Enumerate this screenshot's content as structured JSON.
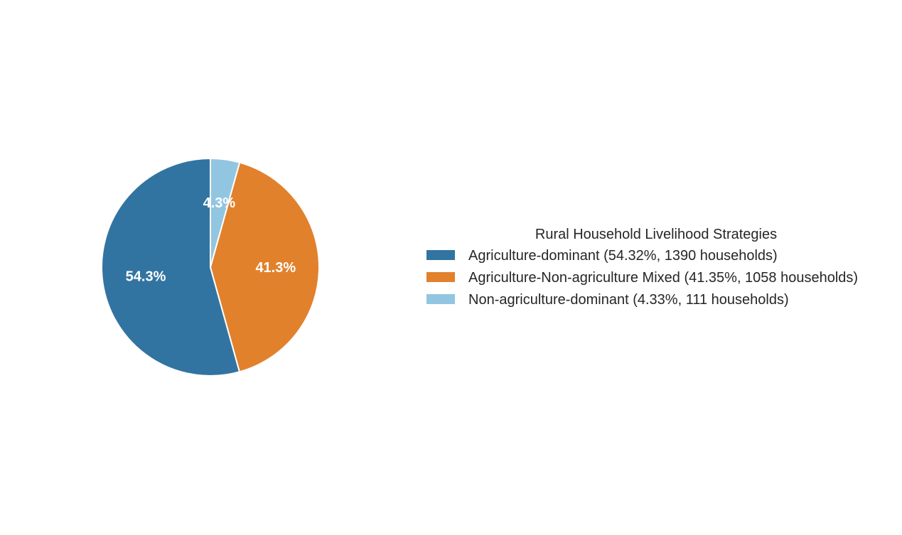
{
  "chart_data": {
    "type": "pie",
    "categories": [
      "Agriculture-dominant",
      "Agriculture-Non-agriculture Mixed",
      "Non-agriculture-dominant"
    ],
    "values": [
      54.32,
      41.35,
      4.33
    ],
    "households": [
      1390,
      1058,
      111
    ],
    "slice_labels": [
      "54.3%",
      "41.3%",
      "4.3%"
    ],
    "colors": [
      "#3274a1",
      "#e1812c",
      "#92c6e0"
    ],
    "legend": {
      "title": "Rural Household Livelihood Strategies",
      "entries": [
        "Agriculture-dominant (54.32%, 1390 households)",
        "Agriculture-Non-agriculture Mixed (41.35%, 1058 households)",
        "Non-agriculture-dominant (4.33%, 111 households)"
      ],
      "placement": "right"
    },
    "start_angle_deg": 90,
    "direction": "counterclockwise"
  }
}
